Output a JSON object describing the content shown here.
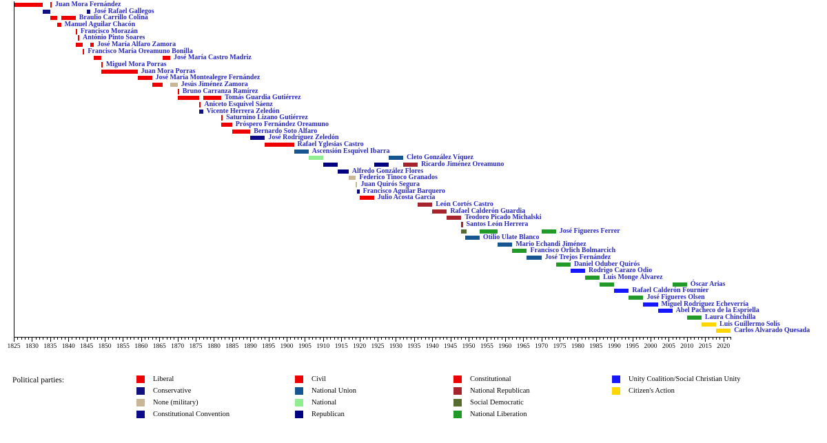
{
  "styles": {
    "label_color": "#2a2ac0",
    "axis_color": "#000000",
    "background": "#ffffff"
  },
  "legend": {
    "title": "Political parties:",
    "columns": [
      [
        "liberal",
        "conservative",
        "none_military",
        "constitutional_convention"
      ],
      [
        "civil",
        "national_union",
        "national",
        "republican"
      ],
      [
        "constitutional",
        "national_republican",
        "social_democratic",
        "national_liberation"
      ],
      [
        "unity_coalition",
        "citizens_action"
      ]
    ]
  },
  "chart_data": {
    "type": "timeline",
    "xlabel": "",
    "ylabel": "",
    "x_axis": {
      "min": 1825,
      "max": 2022,
      "major_tick_step": 5,
      "minor_tick_step": 1,
      "tick_labels": [
        1825,
        1830,
        1835,
        1840,
        1845,
        1850,
        1855,
        1860,
        1865,
        1870,
        1875,
        1880,
        1885,
        1890,
        1895,
        1900,
        1905,
        1910,
        1915,
        1920,
        1925,
        1930,
        1935,
        1940,
        1945,
        1950,
        1955,
        1960,
        1965,
        1970,
        1975,
        1980,
        1985,
        1990,
        1995,
        2000,
        2005,
        2010,
        2015,
        2020
      ]
    },
    "parties": {
      "liberal": {
        "label": "Liberal",
        "color": "#ee0000"
      },
      "conservative": {
        "label": "Conservative",
        "color": "#10107e"
      },
      "none_military": {
        "label": "None (military)",
        "color": "#c8b696"
      },
      "constitutional_convention": {
        "label": "Constitutional Convention",
        "color": "#0c0c8a"
      },
      "civil": {
        "label": "Civil",
        "color": "#ee0000"
      },
      "national_union": {
        "label": "National Union",
        "color": "#175590"
      },
      "national": {
        "label": "National",
        "color": "#90ee90"
      },
      "republican": {
        "label": "Republican",
        "color": "#000080"
      },
      "constitutional": {
        "label": "Constitutional",
        "color": "#ee0000"
      },
      "national_republican": {
        "label": "National Republican",
        "color": "#a5242d"
      },
      "social_democratic": {
        "label": "Social Democratic",
        "color": "#556b2f"
      },
      "national_liberation": {
        "label": "National Liberation",
        "color": "#229a2a"
      },
      "unity_coalition": {
        "label": "Unity Coalition/Social Christian Unity",
        "color": "#1616ff"
      },
      "citizens_action": {
        "label": "Citizen's Action",
        "color": "#ffd700"
      }
    },
    "presidents": [
      {
        "name": "Juan Mora Fernández",
        "terms": [
          {
            "party": "liberal",
            "start": 1825,
            "end": 1833
          },
          {
            "party": "liberal",
            "start": 1835,
            "end": 1835.4
          }
        ]
      },
      {
        "name": "José Rafael Gallegos",
        "terms": [
          {
            "party": "conservative",
            "start": 1833,
            "end": 1835
          },
          {
            "party": "conservative",
            "start": 1845,
            "end": 1846
          }
        ]
      },
      {
        "name": "Braulio Carrillo Colina",
        "terms": [
          {
            "party": "liberal",
            "start": 1835,
            "end": 1837
          },
          {
            "party": "liberal",
            "start": 1838,
            "end": 1842
          }
        ]
      },
      {
        "name": "Manuel Aguilar Chacón",
        "terms": [
          {
            "party": "liberal",
            "start": 1837,
            "end": 1838
          }
        ]
      },
      {
        "name": "Francisco Morazán",
        "terms": [
          {
            "party": "liberal",
            "start": 1842,
            "end": 1842.4
          }
        ]
      },
      {
        "name": "António Pinto Soares",
        "terms": [
          {
            "party": "liberal",
            "start": 1842.6,
            "end": 1843
          }
        ]
      },
      {
        "name": "José María Alfaro Zamora",
        "terms": [
          {
            "party": "liberal",
            "start": 1842,
            "end": 1844
          },
          {
            "party": "liberal",
            "start": 1846,
            "end": 1847
          }
        ]
      },
      {
        "name": "Francisco María Oreamuno Bonilla",
        "terms": [
          {
            "party": "liberal",
            "start": 1844,
            "end": 1844.4
          }
        ]
      },
      {
        "name": "José María Castro Madriz",
        "terms": [
          {
            "party": "liberal",
            "start": 1847,
            "end": 1849
          },
          {
            "party": "liberal",
            "start": 1866,
            "end": 1868
          }
        ]
      },
      {
        "name": "Miguel Mora Porras",
        "terms": [
          {
            "party": "liberal",
            "start": 1849,
            "end": 1849.4
          }
        ]
      },
      {
        "name": "Juan Mora Porras",
        "terms": [
          {
            "party": "liberal",
            "start": 1849,
            "end": 1859
          }
        ]
      },
      {
        "name": "José María Montealegre Fernández",
        "terms": [
          {
            "party": "liberal",
            "start": 1859,
            "end": 1863
          }
        ]
      },
      {
        "name": "Jesús Jiménez Zamora",
        "terms": [
          {
            "party": "liberal",
            "start": 1863,
            "end": 1866
          },
          {
            "party": "none_military",
            "start": 1868,
            "end": 1870
          }
        ]
      },
      {
        "name": "Bruno Carranza Ramírez",
        "terms": [
          {
            "party": "liberal",
            "start": 1870,
            "end": 1870.4
          }
        ]
      },
      {
        "name": "Tomás Guardia Gutiérrez",
        "terms": [
          {
            "party": "liberal",
            "start": 1870,
            "end": 1876
          },
          {
            "party": "liberal",
            "start": 1877,
            "end": 1882
          }
        ]
      },
      {
        "name": "Aniceto Esquivel Sáenz",
        "terms": [
          {
            "party": "liberal",
            "start": 1876,
            "end": 1876.4
          }
        ]
      },
      {
        "name": "Vicente Herrera Zeledón",
        "terms": [
          {
            "party": "conservative",
            "start": 1876,
            "end": 1877
          }
        ]
      },
      {
        "name": "Saturnino Lizano Gutiérrez",
        "terms": [
          {
            "party": "liberal",
            "start": 1882,
            "end": 1882.4
          }
        ]
      },
      {
        "name": "Próspero Fernández Oreamuno",
        "terms": [
          {
            "party": "liberal",
            "start": 1882,
            "end": 1885
          }
        ]
      },
      {
        "name": "Bernardo Soto Alfaro",
        "terms": [
          {
            "party": "liberal",
            "start": 1885,
            "end": 1890
          }
        ]
      },
      {
        "name": "José Rodríguez Zeledón",
        "terms": [
          {
            "party": "constitutional_convention",
            "start": 1890,
            "end": 1894
          }
        ]
      },
      {
        "name": "Rafael Yglesias Castro",
        "terms": [
          {
            "party": "civil",
            "start": 1894,
            "end": 1902
          }
        ]
      },
      {
        "name": "Ascensión Esquivel Ibarra",
        "terms": [
          {
            "party": "national_union",
            "start": 1902,
            "end": 1906
          }
        ]
      },
      {
        "name": "Cleto González Víquez",
        "terms": [
          {
            "party": "national",
            "start": 1906,
            "end": 1910
          },
          {
            "party": "national_union",
            "start": 1928,
            "end": 1932
          }
        ]
      },
      {
        "name": "Ricardo Jiménez Oreamuno",
        "terms": [
          {
            "party": "republican",
            "start": 1910,
            "end": 1914
          },
          {
            "party": "republican",
            "start": 1924,
            "end": 1928
          },
          {
            "party": "national_republican",
            "start": 1932,
            "end": 1936
          }
        ]
      },
      {
        "name": "Alfredo González Flores",
        "terms": [
          {
            "party": "republican",
            "start": 1914,
            "end": 1917
          }
        ]
      },
      {
        "name": "Federico Tinoco Granados",
        "terms": [
          {
            "party": "none_military",
            "start": 1917,
            "end": 1919
          }
        ]
      },
      {
        "name": "Juan Quirós Segura",
        "terms": [
          {
            "party": "none_military",
            "start": 1919,
            "end": 1919.4
          }
        ]
      },
      {
        "name": "Francisco Aguilar Barquero",
        "terms": [
          {
            "party": "republican",
            "start": 1919.3,
            "end": 1920
          }
        ]
      },
      {
        "name": "Julio Acosta García",
        "terms": [
          {
            "party": "constitutional",
            "start": 1920,
            "end": 1924
          }
        ]
      },
      {
        "name": "León Cortés Castro",
        "terms": [
          {
            "party": "national_republican",
            "start": 1936,
            "end": 1940
          }
        ]
      },
      {
        "name": "Rafael Calderón Guardia",
        "terms": [
          {
            "party": "national_republican",
            "start": 1940,
            "end": 1944
          }
        ]
      },
      {
        "name": "Teodoro Picado Michalski",
        "terms": [
          {
            "party": "national_republican",
            "start": 1944,
            "end": 1948
          }
        ]
      },
      {
        "name": "Santos León Herrera",
        "terms": [
          {
            "party": "national_republican",
            "start": 1948,
            "end": 1948.4
          }
        ]
      },
      {
        "name": "José Figueres Ferrer",
        "terms": [
          {
            "party": "social_democratic",
            "start": 1948,
            "end": 1949.5
          },
          {
            "party": "national_liberation",
            "start": 1953,
            "end": 1958
          },
          {
            "party": "national_liberation",
            "start": 1970,
            "end": 1974
          }
        ]
      },
      {
        "name": "Otilio Ulate Blanco",
        "terms": [
          {
            "party": "national_union",
            "start": 1949,
            "end": 1953
          }
        ]
      },
      {
        "name": "Mario Echandi Jiménez",
        "terms": [
          {
            "party": "national_union",
            "start": 1958,
            "end": 1962
          }
        ]
      },
      {
        "name": "Francisco Órlich Bolmarcich",
        "terms": [
          {
            "party": "national_liberation",
            "start": 1962,
            "end": 1966
          }
        ]
      },
      {
        "name": "José Trejos Fernández",
        "terms": [
          {
            "party": "national_union",
            "start": 1966,
            "end": 1970
          }
        ]
      },
      {
        "name": "Daniel Oduber Quirós",
        "terms": [
          {
            "party": "national_liberation",
            "start": 1974,
            "end": 1978
          }
        ]
      },
      {
        "name": "Rodrigo Carazo Odio",
        "terms": [
          {
            "party": "unity_coalition",
            "start": 1978,
            "end": 1982
          }
        ]
      },
      {
        "name": "Luis Monge Álvarez",
        "terms": [
          {
            "party": "national_liberation",
            "start": 1982,
            "end": 1986
          }
        ]
      },
      {
        "name": "Óscar Arias",
        "terms": [
          {
            "party": "national_liberation",
            "start": 1986,
            "end": 1990
          },
          {
            "party": "national_liberation",
            "start": 2006,
            "end": 2010
          }
        ]
      },
      {
        "name": "Rafael Calderón Fournier",
        "terms": [
          {
            "party": "unity_coalition",
            "start": 1990,
            "end": 1994
          }
        ]
      },
      {
        "name": "José Figueres Olsen",
        "terms": [
          {
            "party": "national_liberation",
            "start": 1994,
            "end": 1998
          }
        ]
      },
      {
        "name": "Miguel Rodríguez Echeverría",
        "terms": [
          {
            "party": "unity_coalition",
            "start": 1998,
            "end": 2002
          }
        ]
      },
      {
        "name": "Abel Pacheco de la Espriella",
        "terms": [
          {
            "party": "unity_coalition",
            "start": 2002,
            "end": 2006
          }
        ]
      },
      {
        "name": "Laura Chinchilla",
        "terms": [
          {
            "party": "national_liberation",
            "start": 2010,
            "end": 2014
          }
        ]
      },
      {
        "name": "Luis Guillermo Solís",
        "terms": [
          {
            "party": "citizens_action",
            "start": 2014,
            "end": 2018
          }
        ]
      },
      {
        "name": "Carlos Alvarado Quesada",
        "terms": [
          {
            "party": "citizens_action",
            "start": 2018,
            "end": 2022
          }
        ]
      }
    ]
  }
}
